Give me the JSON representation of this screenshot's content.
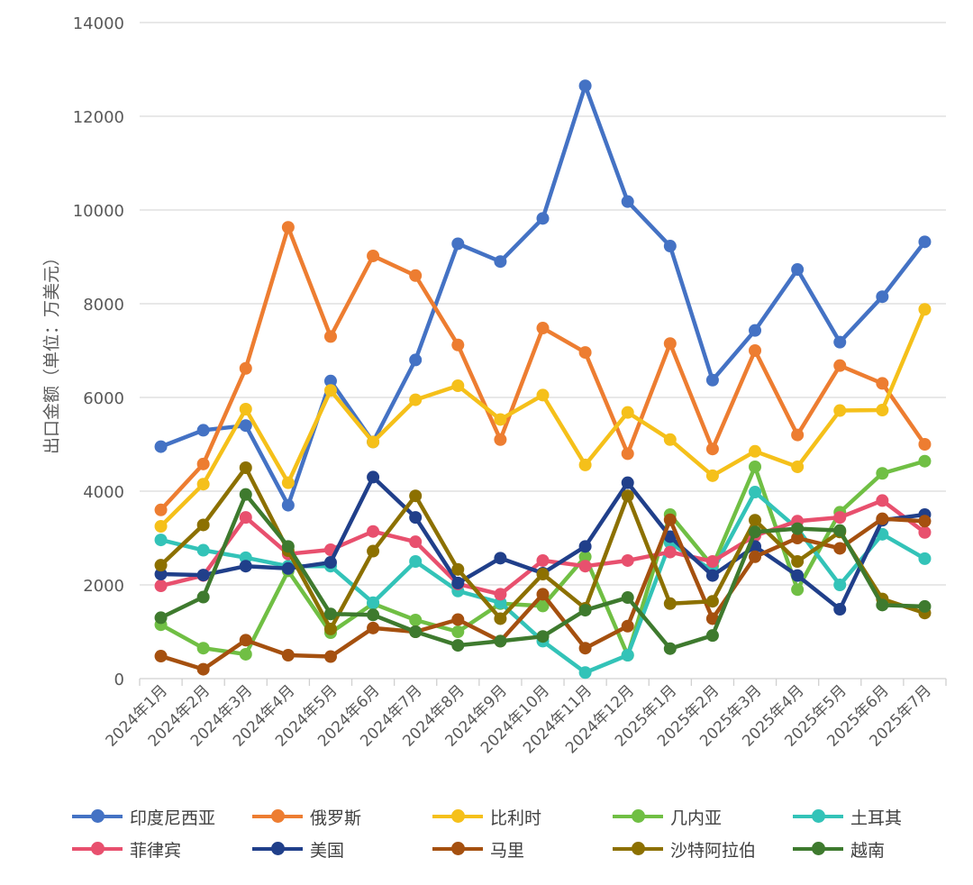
{
  "chart_data": {
    "type": "line",
    "title": "",
    "xlabel": "",
    "ylabel": "出口金额（单位：万美元）",
    "ylim": [
      0,
      14000
    ],
    "yticks": [
      0,
      2000,
      4000,
      6000,
      8000,
      10000,
      12000,
      14000
    ],
    "grid": true,
    "legend_position": "bottom",
    "categories": [
      "2024年1月",
      "2024年2月",
      "2024年3月",
      "2024年4月",
      "2024年5月",
      "2024年6月",
      "2024年7月",
      "2024年8月",
      "2024年9月",
      "2024年10月",
      "2024年11月",
      "2024年12月",
      "2025年1月",
      "2025年2月",
      "2025年3月",
      "2025年4月",
      "2025年5月",
      "2025年6月",
      "2025年7月"
    ],
    "series": [
      {
        "name": "印度尼西亚",
        "color": "#4472C4",
        "values": [
          4950,
          5300,
          5400,
          3700,
          6350,
          5050,
          6800,
          9280,
          8900,
          9820,
          12650,
          10180,
          9230,
          6370,
          7430,
          8730,
          7180,
          8150,
          9320
        ]
      },
      {
        "name": "俄罗斯",
        "color": "#ED7D31",
        "values": [
          3600,
          4580,
          6620,
          9630,
          7300,
          9020,
          8600,
          7120,
          5100,
          7480,
          6960,
          4800,
          7150,
          4900,
          7000,
          5200,
          6680,
          6300,
          5000
        ]
      },
      {
        "name": "比利时",
        "color": "#F5C01A",
        "values": [
          3250,
          4150,
          5750,
          4180,
          6150,
          5050,
          5950,
          6250,
          5530,
          6050,
          4560,
          5680,
          5100,
          4330,
          4850,
          4520,
          5720,
          5730,
          7880
        ]
      },
      {
        "name": "几内亚",
        "color": "#70BF44",
        "values": [
          1150,
          650,
          520,
          2300,
          980,
          1600,
          1250,
          1000,
          1600,
          1550,
          2600,
          500,
          3500,
          2400,
          4520,
          1900,
          3550,
          4380,
          4640
        ]
      },
      {
        "name": "土耳其",
        "color": "#33C3B8",
        "values": [
          2960,
          2740,
          2580,
          2400,
          2400,
          1620,
          2500,
          1870,
          1620,
          800,
          130,
          500,
          2900,
          2300,
          3980,
          3200,
          2000,
          3080,
          2560
        ]
      },
      {
        "name": "菲律宾",
        "color": "#E8506E",
        "values": [
          1980,
          2200,
          3440,
          2660,
          2750,
          3140,
          2920,
          2020,
          1800,
          2520,
          2400,
          2520,
          2700,
          2500,
          3050,
          3360,
          3440,
          3800,
          3120
        ]
      },
      {
        "name": "美国",
        "color": "#203F8A",
        "values": [
          2230,
          2210,
          2400,
          2350,
          2480,
          4300,
          3440,
          2040,
          2570,
          2250,
          2820,
          4180,
          3030,
          2200,
          2820,
          2200,
          1480,
          3380,
          3500
        ]
      },
      {
        "name": "马里",
        "color": "#A5500F",
        "values": [
          480,
          200,
          820,
          500,
          470,
          1080,
          1000,
          1260,
          800,
          1800,
          650,
          1120,
          3390,
          1280,
          2600,
          3000,
          2780,
          3410,
          3360
        ]
      },
      {
        "name": "沙特阿拉伯",
        "color": "#8C7000",
        "values": [
          2420,
          3280,
          4500,
          2730,
          1060,
          2720,
          3900,
          2330,
          1280,
          2230,
          1500,
          3900,
          1600,
          1650,
          3380,
          2500,
          3130,
          1700,
          1400
        ]
      },
      {
        "name": "越南",
        "color": "#3E7A2E",
        "values": [
          1300,
          1740,
          3930,
          2820,
          1380,
          1360,
          1000,
          710,
          800,
          900,
          1460,
          1730,
          640,
          920,
          3130,
          3200,
          3160,
          1570,
          1540
        ]
      }
    ]
  }
}
